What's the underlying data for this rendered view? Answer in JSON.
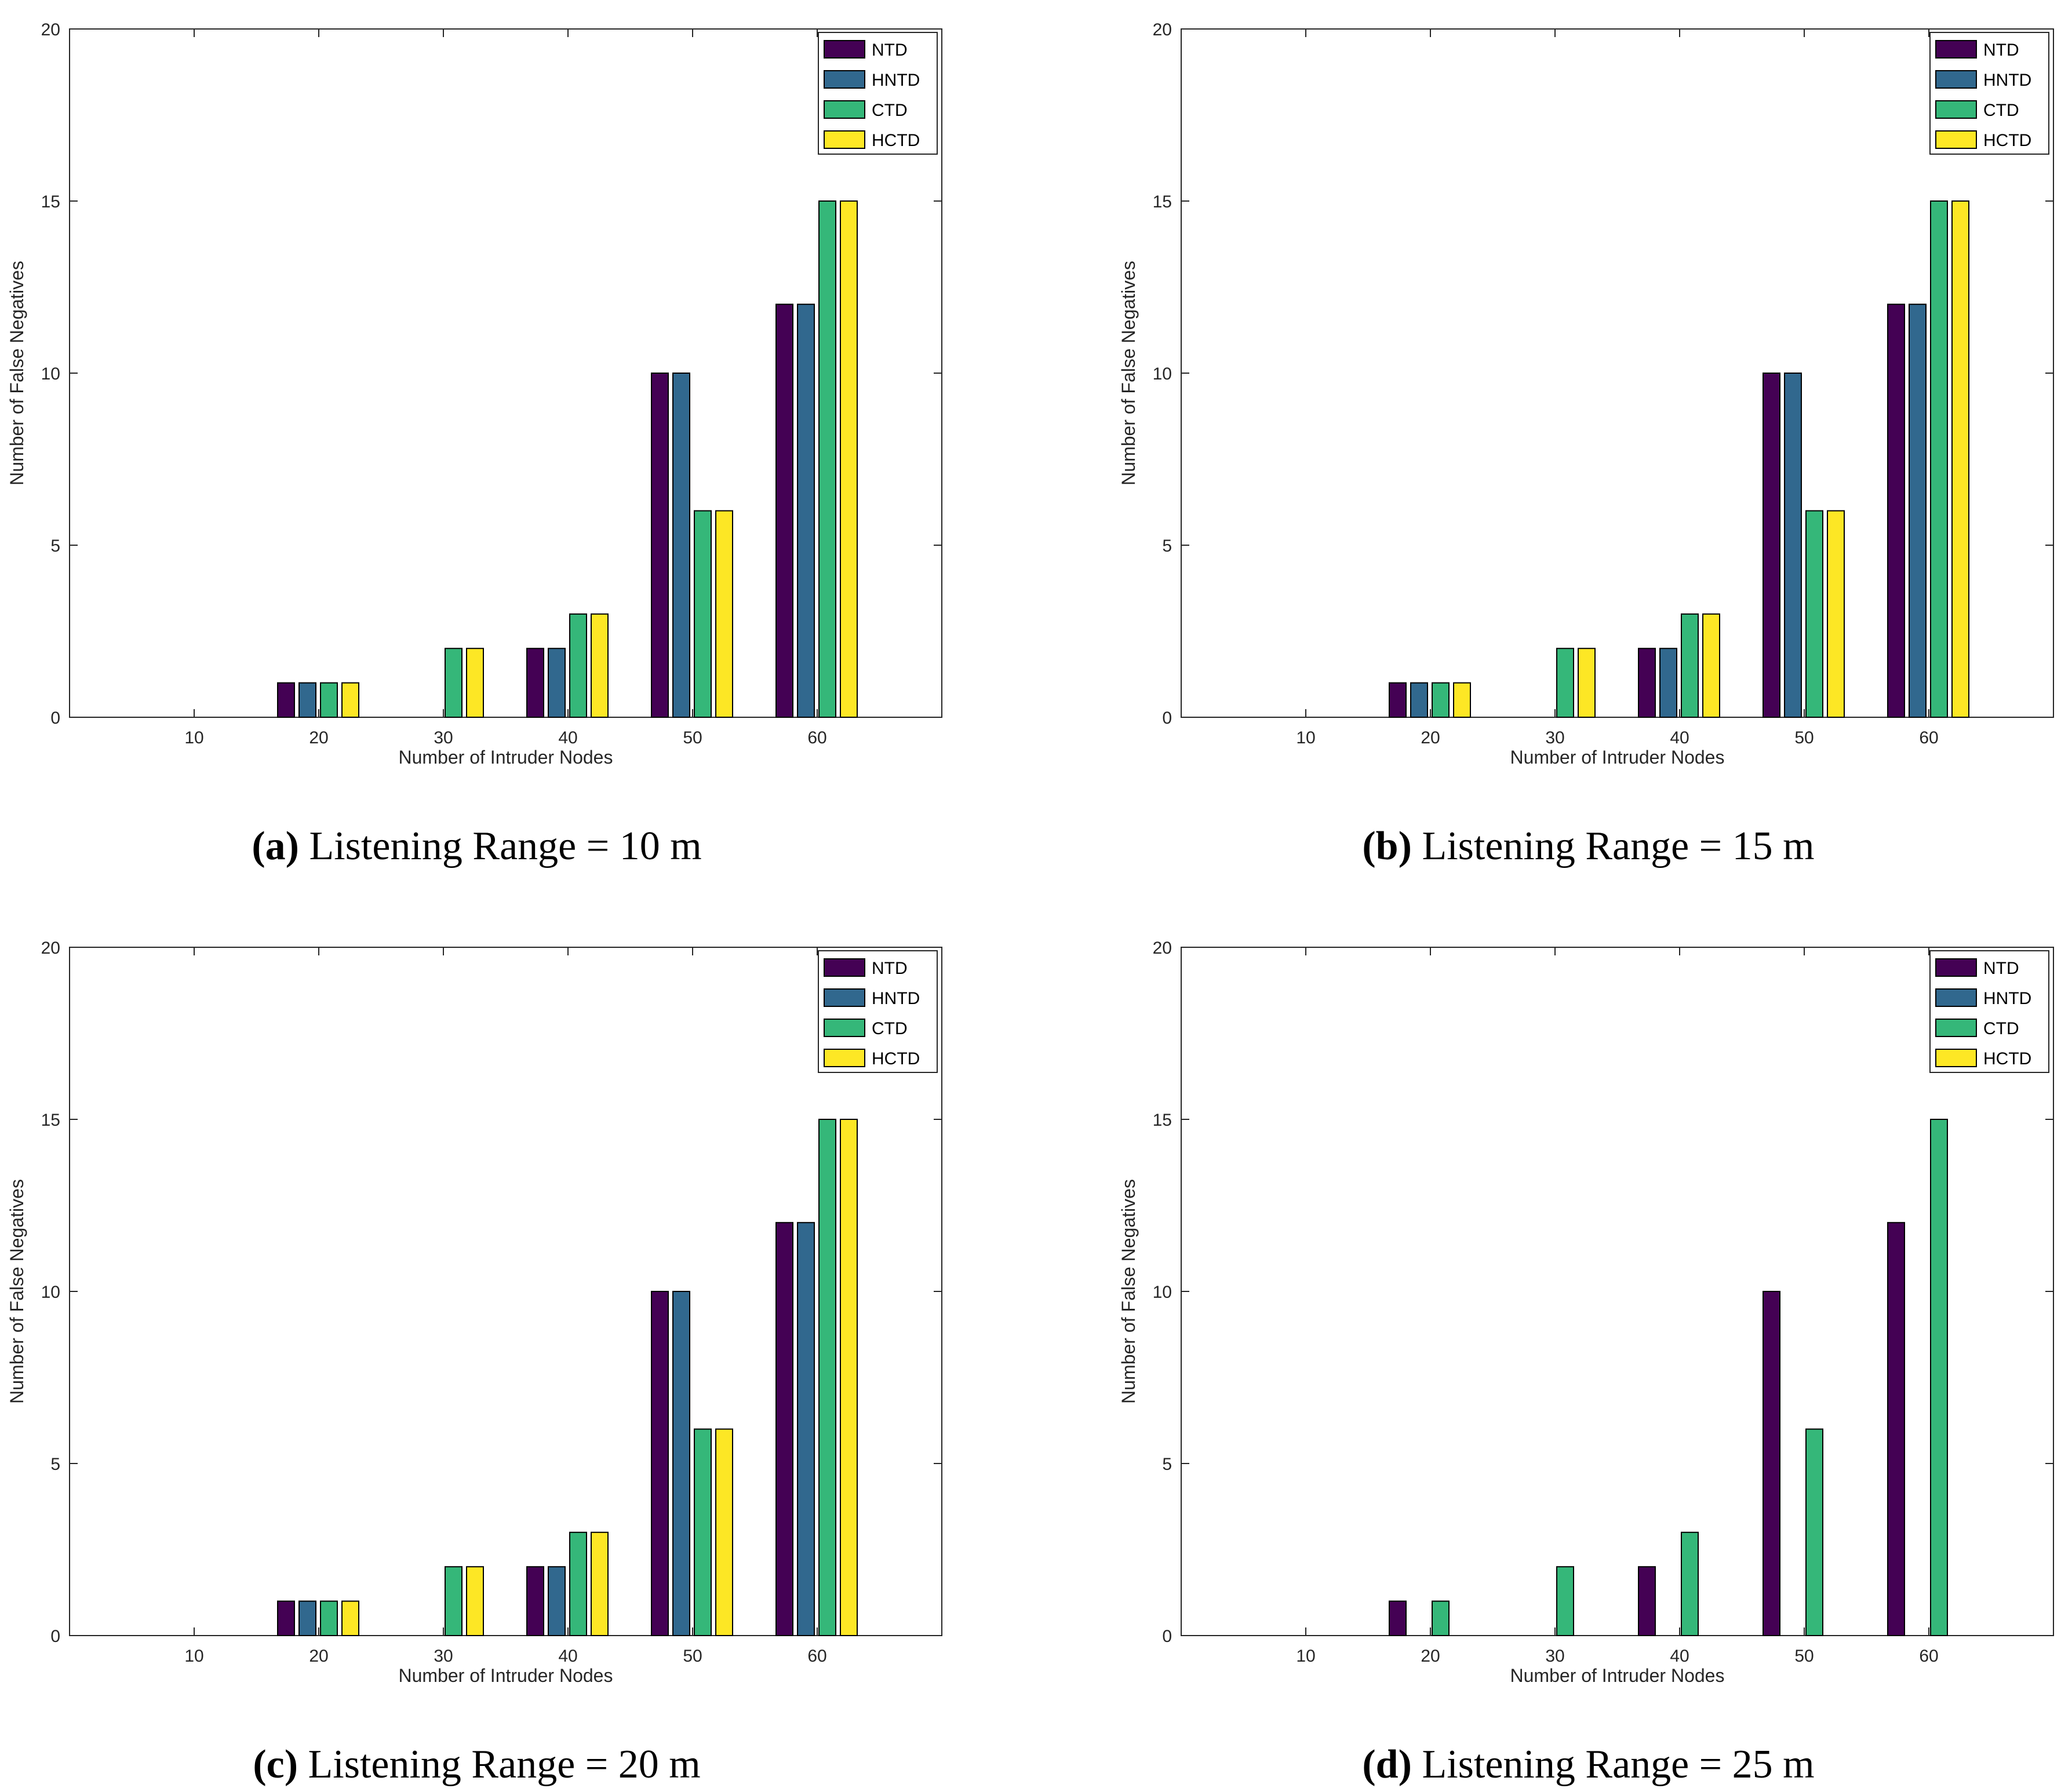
{
  "chart_data": [
    {
      "type": "bar",
      "panel": "a",
      "caption_tag": "(a)",
      "caption_text": "Listening Range = 10 m",
      "xlabel": "Number of Intruder Nodes",
      "ylabel": "Number of False Negatives",
      "categories": [
        "10",
        "20",
        "30",
        "40",
        "50",
        "60"
      ],
      "ylim": [
        0,
        20
      ],
      "yticks": [
        "0",
        "5",
        "10",
        "15",
        "20"
      ],
      "legend_position": "top-right",
      "series": [
        {
          "name": "NTD",
          "color": "#440154",
          "values": [
            0,
            1,
            0,
            2,
            10,
            12
          ]
        },
        {
          "name": "HNTD",
          "color": "#31688e",
          "values": [
            0,
            1,
            0,
            2,
            10,
            12
          ]
        },
        {
          "name": "CTD",
          "color": "#35b779",
          "values": [
            0,
            1,
            2,
            3,
            6,
            15
          ]
        },
        {
          "name": "HCTD",
          "color": "#fde725",
          "values": [
            0,
            1,
            2,
            3,
            6,
            15
          ]
        }
      ]
    },
    {
      "type": "bar",
      "panel": "b",
      "caption_tag": "(b)",
      "caption_text": "Listening Range = 15 m",
      "xlabel": "Number of Intruder Nodes",
      "ylabel": "Number of False Negatives",
      "categories": [
        "10",
        "20",
        "30",
        "40",
        "50",
        "60"
      ],
      "ylim": [
        0,
        20
      ],
      "yticks": [
        "0",
        "5",
        "10",
        "15",
        "20"
      ],
      "legend_position": "top-right",
      "series": [
        {
          "name": "NTD",
          "color": "#440154",
          "values": [
            0,
            1,
            0,
            2,
            10,
            12
          ]
        },
        {
          "name": "HNTD",
          "color": "#31688e",
          "values": [
            0,
            1,
            0,
            2,
            10,
            12
          ]
        },
        {
          "name": "CTD",
          "color": "#35b779",
          "values": [
            0,
            1,
            2,
            3,
            6,
            15
          ]
        },
        {
          "name": "HCTD",
          "color": "#fde725",
          "values": [
            0,
            1,
            2,
            3,
            6,
            15
          ]
        }
      ]
    },
    {
      "type": "bar",
      "panel": "c",
      "caption_tag": "(c)",
      "caption_text": "Listening Range = 20 m",
      "xlabel": "Number of Intruder Nodes",
      "ylabel": "Number of False Negatives",
      "categories": [
        "10",
        "20",
        "30",
        "40",
        "50",
        "60"
      ],
      "ylim": [
        0,
        20
      ],
      "yticks": [
        "0",
        "5",
        "10",
        "15",
        "20"
      ],
      "legend_position": "top-right",
      "series": [
        {
          "name": "NTD",
          "color": "#440154",
          "values": [
            0,
            1,
            0,
            2,
            10,
            12
          ]
        },
        {
          "name": "HNTD",
          "color": "#31688e",
          "values": [
            0,
            1,
            0,
            2,
            10,
            12
          ]
        },
        {
          "name": "CTD",
          "color": "#35b779",
          "values": [
            0,
            1,
            2,
            3,
            6,
            15
          ]
        },
        {
          "name": "HCTD",
          "color": "#fde725",
          "values": [
            0,
            1,
            2,
            3,
            6,
            15
          ]
        }
      ]
    },
    {
      "type": "bar",
      "panel": "d",
      "caption_tag": "(d)",
      "caption_text": "Listening Range = 25 m",
      "xlabel": "Number of Intruder Nodes",
      "ylabel": "Number of False Negatives",
      "categories": [
        "10",
        "20",
        "30",
        "40",
        "50",
        "60"
      ],
      "ylim": [
        0,
        20
      ],
      "yticks": [
        "0",
        "5",
        "10",
        "15",
        "20"
      ],
      "legend_position": "top-right",
      "series": [
        {
          "name": "NTD",
          "color": "#440154",
          "values": [
            0,
            1,
            0,
            2,
            10,
            12
          ]
        },
        {
          "name": "HNTD",
          "color": "#31688e",
          "values": [
            0,
            0,
            0,
            0,
            0,
            0
          ]
        },
        {
          "name": "CTD",
          "color": "#35b779",
          "values": [
            0,
            1,
            2,
            3,
            6,
            15
          ]
        },
        {
          "name": "HCTD",
          "color": "#fde725",
          "values": [
            0,
            0,
            0,
            0,
            0,
            0
          ]
        }
      ]
    }
  ]
}
